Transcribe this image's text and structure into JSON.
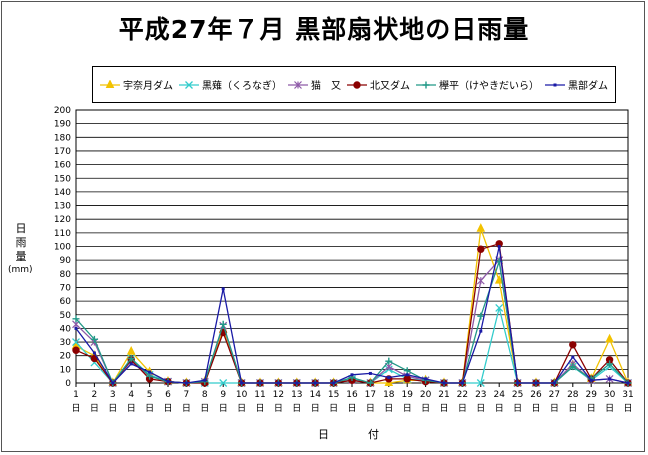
{
  "chart_data": {
    "type": "line",
    "title": "平成27年７月 黒部扇状地の日雨量",
    "ylabel": "日雨量",
    "yunit": "(mm)",
    "xlabel": "日　付",
    "ylim": [
      0,
      200
    ],
    "yticks": [
      0,
      10,
      20,
      30,
      40,
      50,
      60,
      70,
      80,
      90,
      100,
      110,
      120,
      130,
      140,
      150,
      160,
      170,
      180,
      190,
      200
    ],
    "x": [
      1,
      2,
      3,
      4,
      5,
      6,
      7,
      8,
      9,
      10,
      11,
      12,
      13,
      14,
      15,
      16,
      17,
      18,
      19,
      20,
      21,
      22,
      23,
      24,
      25,
      26,
      27,
      28,
      29,
      30,
      31
    ],
    "x_tick_suffix": "日",
    "grid": true,
    "legend_position": "top",
    "series": [
      {
        "name": "宇奈月ダム",
        "color": "#f2c200",
        "marker": "triangle",
        "values": [
          27,
          20,
          0,
          23,
          8,
          1,
          0,
          1,
          39,
          0,
          0,
          0,
          0,
          0,
          0,
          3,
          0,
          0,
          2,
          2,
          0,
          0,
          113,
          75,
          0,
          0,
          0,
          13,
          3,
          32,
          0
        ]
      },
      {
        "name": "黒薙（くろなぎ）",
        "color": "#33cccc",
        "marker": "x",
        "values": [
          30,
          15,
          0,
          18,
          6,
          1,
          0,
          0,
          0,
          0,
          0,
          0,
          0,
          0,
          0,
          3,
          0,
          10,
          3,
          2,
          0,
          0,
          0,
          55,
          0,
          0,
          0,
          12,
          2,
          12,
          0
        ]
      },
      {
        "name": "猫　又",
        "color": "#8e5aa8",
        "marker": "star",
        "values": [
          43,
          30,
          0,
          16,
          5,
          1,
          0,
          1,
          42,
          0,
          0,
          0,
          0,
          0,
          0,
          2,
          0,
          12,
          5,
          2,
          0,
          0,
          75,
          90,
          0,
          0,
          0,
          14,
          2,
          3,
          0
        ]
      },
      {
        "name": "北又ダム",
        "color": "#8b0000",
        "marker": "circle",
        "values": [
          24,
          18,
          0,
          17,
          3,
          1,
          0,
          0,
          37,
          0,
          0,
          0,
          0,
          0,
          0,
          2,
          0,
          3,
          3,
          1,
          0,
          0,
          98,
          102,
          0,
          0,
          0,
          28,
          3,
          17,
          0
        ]
      },
      {
        "name": "欅平（けやきだいら）",
        "color": "#229988",
        "marker": "plus",
        "values": [
          47,
          32,
          0,
          18,
          5,
          1,
          0,
          1,
          43,
          0,
          0,
          0,
          0,
          0,
          0,
          4,
          0,
          16,
          9,
          2,
          0,
          0,
          49,
          89,
          0,
          0,
          0,
          12,
          3,
          14,
          0
        ]
      },
      {
        "name": "黒部ダム",
        "color": "#1a1aa6",
        "marker": "dot",
        "values": [
          40,
          22,
          0,
          14,
          8,
          1,
          0,
          2,
          69,
          0,
          0,
          0,
          0,
          0,
          0,
          6,
          7,
          4,
          6,
          3,
          0,
          0,
          38,
          100,
          0,
          0,
          0,
          19,
          2,
          3,
          0
        ]
      }
    ]
  }
}
